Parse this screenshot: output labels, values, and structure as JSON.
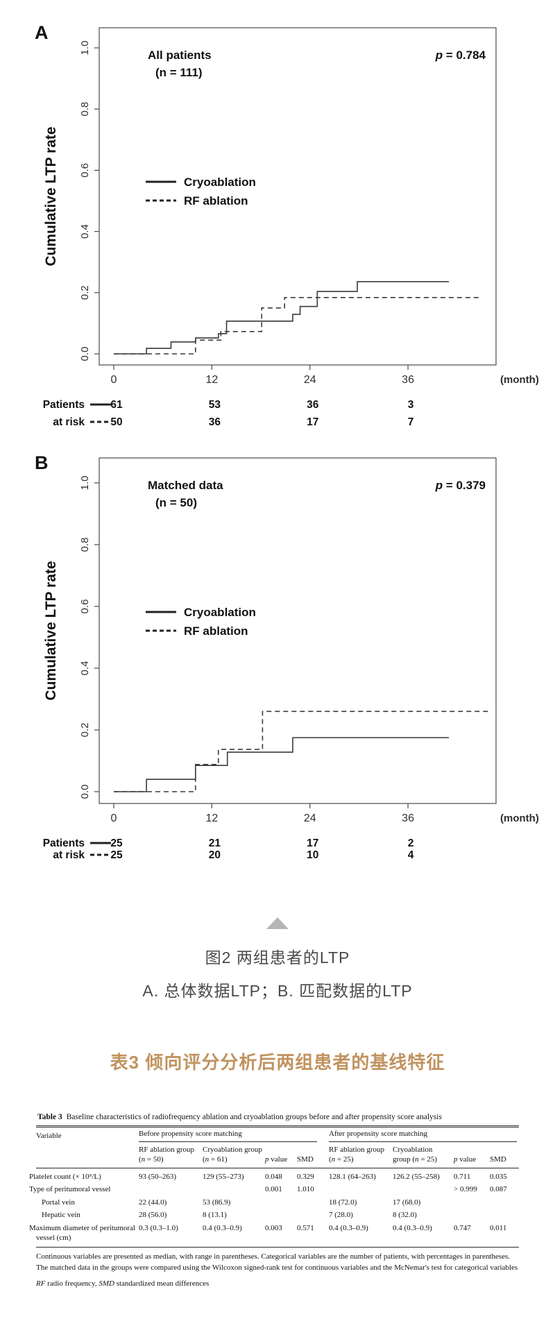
{
  "figure": {
    "collapse_icon": "triangle-up",
    "caption": {
      "line1": "图2 两组患者的LTP",
      "line2": "A. 总体数据LTP；B. 匹配数据的LTP"
    }
  },
  "table_heading_cn": "表3 倾向评分分析后两组患者的基线特征",
  "chart_data": [
    {
      "type": "line",
      "panel_label": "A",
      "title_line1": "All patients",
      "title_line2": "(n = 111)",
      "p_value": "p = 0.784",
      "ylabel": "Cumulative LTP rate",
      "xlabel": "(month)",
      "x_ticks": [
        0,
        12,
        24,
        36
      ],
      "y_ticks": [
        0.0,
        0.2,
        0.4,
        0.6,
        0.8,
        1.0
      ],
      "xlim": [
        0,
        46.8
      ],
      "ylim": [
        0,
        1
      ],
      "grid": false,
      "legend_position": "left-middle",
      "series": [
        {
          "name": "Cryoablation",
          "line": "solid",
          "points": [
            [
              0,
              0
            ],
            [
              4,
              0.018
            ],
            [
              7,
              0.039
            ],
            [
              10,
              0.052
            ],
            [
              12.8,
              0.066
            ],
            [
              13.8,
              0.107
            ],
            [
              21.9,
              0.129
            ],
            [
              22.8,
              0.155
            ],
            [
              24.9,
              0.204
            ],
            [
              29.8,
              0.236
            ],
            [
              41,
              0.236
            ]
          ]
        },
        {
          "name": "RF ablation",
          "line": "dashed",
          "points": [
            [
              0,
              0
            ],
            [
              10,
              0.045
            ],
            [
              13.1,
              0.073
            ],
            [
              18.1,
              0.15
            ],
            [
              20.9,
              0.184
            ],
            [
              45,
              0.184
            ]
          ]
        }
      ],
      "at_risk": {
        "label_line1": "Patients",
        "label_line2": "at risk",
        "times": [
          0,
          12,
          24,
          36
        ],
        "solid": [
          "61",
          "53",
          "36",
          "3"
        ],
        "dashed": [
          "50",
          "36",
          "17",
          "7"
        ]
      }
    },
    {
      "type": "line",
      "panel_label": "B",
      "title_line1": "Matched data",
      "title_line2": "(n = 50)",
      "p_value": "p = 0.379",
      "ylabel": "Cumulative LTP rate",
      "xlabel": "(month)",
      "x_ticks": [
        0,
        12,
        24,
        36
      ],
      "y_ticks": [
        0.0,
        0.2,
        0.4,
        0.6,
        0.8,
        1.0
      ],
      "xlim": [
        0,
        46.8
      ],
      "ylim": [
        0,
        1
      ],
      "grid": false,
      "legend_position": "left-middle",
      "series": [
        {
          "name": "Cryoablation",
          "line": "solid",
          "points": [
            [
              0,
              0
            ],
            [
              4,
              0.04
            ],
            [
              10,
              0.085
            ],
            [
              13.9,
              0.128
            ],
            [
              21.9,
              0.175
            ],
            [
              41,
              0.175
            ]
          ]
        },
        {
          "name": "RF ablation",
          "line": "dashed",
          "points": [
            [
              0,
              0
            ],
            [
              10,
              0.088
            ],
            [
              12.8,
              0.137
            ],
            [
              18.2,
              0.26
            ],
            [
              46,
              0.26
            ]
          ]
        }
      ],
      "at_risk": {
        "label_line1": "Patients",
        "label_line2": "at risk",
        "times": [
          0,
          12,
          24,
          36
        ],
        "solid": [
          "25",
          "21",
          "17",
          "2"
        ],
        "dashed": [
          "25",
          "20",
          "10",
          "4"
        ]
      }
    }
  ],
  "table": {
    "caption_label": "Table 3",
    "caption_text": "Baseline characteristics of radiofrequency ablation and cryoablation groups before and after propensity score analysis",
    "variable_header": "Variable",
    "group_headers": [
      "Before propensity score matching",
      "After propensity score matching"
    ],
    "sub_headers": [
      "RF ablation group (n = 50)",
      "Cryoablation group (n = 61)",
      "p value",
      "SMD",
      "RF ablation group (n = 25)",
      "Cryoablation group (n = 25)",
      "p value",
      "SMD"
    ],
    "rows": [
      {
        "variable": "Platelet count (× 10⁹/L)",
        "indent": false,
        "cells": [
          "93 (50–263)",
          "129 (55–273)",
          "0.048",
          "0.329",
          "128.1 (64–263)",
          "126.2 (55–258)",
          "0.711",
          "0.035"
        ]
      },
      {
        "variable": "Type of peritumoral vessel",
        "indent": false,
        "cells": [
          "",
          "",
          "0.001",
          "1.010",
          "",
          "",
          "> 0.999",
          "0.087"
        ]
      },
      {
        "variable": "Portal vein",
        "indent": true,
        "cells": [
          "22 (44.0)",
          "53 (86.9)",
          "",
          "",
          "18 (72.0)",
          "17 (68.0)",
          "",
          ""
        ]
      },
      {
        "variable": "Hepatic vein",
        "indent": true,
        "cells": [
          "28 (56.0)",
          "8 (13.1)",
          "",
          "",
          "7 (28.0)",
          "8 (32.0)",
          "",
          ""
        ]
      },
      {
        "variable": "Maximum diameter of peritumoral vessel (cm)",
        "indent": false,
        "cells": [
          "0.3 (0.3–1.0)",
          "0.4 (0.3–0.9)",
          "0.003",
          "0.571",
          "0.4 (0.3–0.9)",
          "0.4 (0.3–0.9)",
          "0.747",
          "0.011"
        ]
      }
    ],
    "footnote1": "Continuous variables are presented as median, with range in parentheses. Categorical variables are the number of patients, with percentages in parentheses. The matched data in the groups were compared using the Wilcoxon signed-rank test for continuous variables and the McNemar's test for categorical variables",
    "footnote2_segments": [
      {
        "text": "RF",
        "italic": true
      },
      {
        "text": " radio frequency, ",
        "italic": false
      },
      {
        "text": "SMD",
        "italic": true
      },
      {
        "text": " standardized mean differences",
        "italic": false
      }
    ],
    "accent_color": "#c0935f"
  }
}
